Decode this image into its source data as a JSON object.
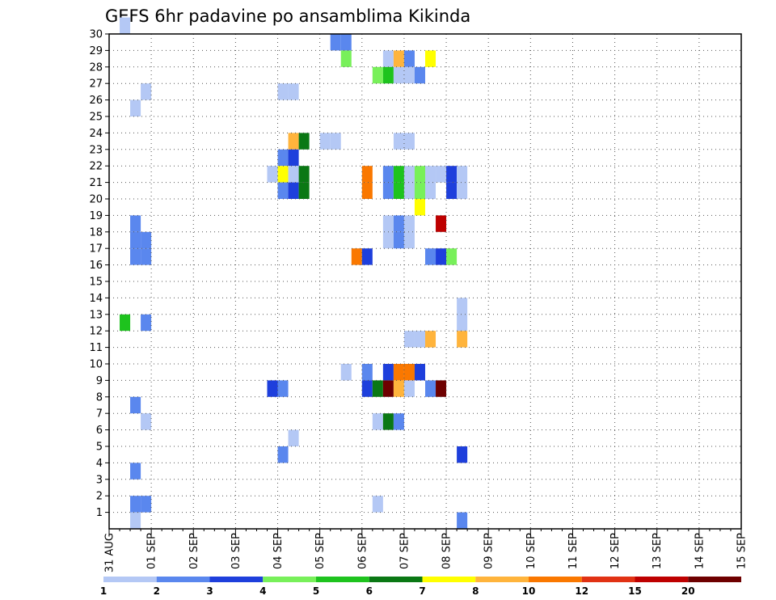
{
  "chart_data": {
    "type": "heatmap",
    "title": "GEFS 6hr padavine po ansamblima Kikinda",
    "xlabel": "",
    "ylabel": "",
    "x_range": [
      "31 AUG 00Z",
      "15 SEP 00Z"
    ],
    "x_tick_labels": [
      "31 AUG",
      "01 SEP",
      "02 SEP",
      "03 SEP",
      "04 SEP",
      "05 SEP",
      "06 SEP",
      "07 SEP",
      "08 SEP",
      "09 SEP",
      "10 SEP",
      "11 SEP",
      "12 SEP",
      "13 SEP",
      "14 SEP",
      "15 SEP"
    ],
    "x_step_hours": 6,
    "y_tick_labels": [
      "1",
      "2",
      "3",
      "4",
      "5",
      "6",
      "7",
      "8",
      "9",
      "10",
      "11",
      "12",
      "13",
      "14",
      "15",
      "16",
      "17",
      "18",
      "19",
      "20",
      "21",
      "22",
      "23",
      "24",
      "25",
      "26",
      "27",
      "28",
      "29",
      "30"
    ],
    "y_range": [
      0,
      30
    ],
    "grid": true,
    "colorbar": {
      "labels": [
        "1",
        "2",
        "3",
        "4",
        "5",
        "6",
        "7",
        "8",
        "10",
        "12",
        "15",
        "20"
      ],
      "colors": [
        "#b4c8f5",
        "#5a87ee",
        "#1e3fdc",
        "#78f05a",
        "#1ec31e",
        "#0a7814",
        "#ffff00",
        "#ffb43c",
        "#fa7800",
        "#e13214",
        "#be0000",
        "#6e0000"
      ]
    },
    "series_note": "cells: [member, 6h-step index from 31 AUG 00Z, class index into colorbar.colors]",
    "cells": [
      [
        30,
        1,
        0
      ],
      [
        29,
        21,
        1
      ],
      [
        29,
        22,
        1
      ],
      [
        28,
        22,
        3
      ],
      [
        28,
        26,
        0
      ],
      [
        28,
        27,
        7
      ],
      [
        28,
        28,
        1
      ],
      [
        28,
        30,
        6
      ],
      [
        27,
        25,
        3
      ],
      [
        27,
        26,
        4
      ],
      [
        27,
        27,
        0
      ],
      [
        27,
        28,
        0
      ],
      [
        27,
        29,
        1
      ],
      [
        26,
        3,
        0
      ],
      [
        26,
        16,
        0
      ],
      [
        26,
        17,
        0
      ],
      [
        25,
        2,
        0
      ],
      [
        23,
        17,
        7
      ],
      [
        23,
        18,
        5
      ],
      [
        23,
        20,
        0
      ],
      [
        23,
        21,
        0
      ],
      [
        23,
        27,
        0
      ],
      [
        23,
        28,
        0
      ],
      [
        22,
        16,
        1
      ],
      [
        22,
        17,
        2
      ],
      [
        21,
        15,
        0
      ],
      [
        21,
        16,
        6
      ],
      [
        21,
        17,
        0
      ],
      [
        21,
        18,
        5
      ],
      [
        21,
        24,
        8
      ],
      [
        21,
        26,
        1
      ],
      [
        21,
        27,
        4
      ],
      [
        21,
        28,
        0
      ],
      [
        21,
        29,
        3
      ],
      [
        21,
        30,
        0
      ],
      [
        21,
        31,
        0
      ],
      [
        21,
        32,
        2
      ],
      [
        21,
        33,
        0
      ],
      [
        20,
        16,
        1
      ],
      [
        20,
        17,
        2
      ],
      [
        20,
        18,
        5
      ],
      [
        20,
        24,
        8
      ],
      [
        20,
        26,
        1
      ],
      [
        20,
        27,
        4
      ],
      [
        20,
        28,
        0
      ],
      [
        20,
        29,
        3
      ],
      [
        20,
        30,
        0
      ],
      [
        20,
        32,
        2
      ],
      [
        20,
        33,
        0
      ],
      [
        19,
        29,
        6
      ],
      [
        18,
        2,
        1
      ],
      [
        18,
        26,
        0
      ],
      [
        18,
        27,
        1
      ],
      [
        18,
        28,
        0
      ],
      [
        18,
        31,
        10
      ],
      [
        17,
        2,
        1
      ],
      [
        17,
        3,
        1
      ],
      [
        17,
        26,
        0
      ],
      [
        17,
        27,
        1
      ],
      [
        17,
        28,
        0
      ],
      [
        16,
        2,
        1
      ],
      [
        16,
        3,
        1
      ],
      [
        16,
        23,
        8
      ],
      [
        16,
        24,
        2
      ],
      [
        16,
        30,
        1
      ],
      [
        16,
        31,
        2
      ],
      [
        16,
        32,
        3
      ],
      [
        13,
        33,
        0
      ],
      [
        12,
        1,
        4
      ],
      [
        12,
        3,
        1
      ],
      [
        12,
        33,
        0
      ],
      [
        11,
        28,
        0
      ],
      [
        11,
        29,
        0
      ],
      [
        11,
        30,
        7
      ],
      [
        11,
        33,
        7
      ],
      [
        9,
        22,
        0
      ],
      [
        9,
        24,
        1
      ],
      [
        9,
        26,
        2
      ],
      [
        9,
        27,
        8
      ],
      [
        9,
        28,
        8
      ],
      [
        9,
        29,
        2
      ],
      [
        8,
        15,
        2
      ],
      [
        8,
        16,
        1
      ],
      [
        8,
        24,
        2
      ],
      [
        8,
        25,
        5
      ],
      [
        8,
        26,
        11
      ],
      [
        8,
        27,
        7
      ],
      [
        8,
        28,
        0
      ],
      [
        8,
        30,
        1
      ],
      [
        8,
        31,
        11
      ],
      [
        7,
        2,
        1
      ],
      [
        6,
        3,
        0
      ],
      [
        6,
        25,
        0
      ],
      [
        6,
        26,
        5
      ],
      [
        6,
        27,
        1
      ],
      [
        5,
        17,
        0
      ],
      [
        4,
        16,
        1
      ],
      [
        4,
        33,
        2
      ],
      [
        3,
        2,
        1
      ],
      [
        1,
        2,
        1
      ],
      [
        1,
        3,
        1
      ],
      [
        1,
        25,
        0
      ],
      [
        0,
        2,
        0
      ],
      [
        0,
        33,
        1
      ]
    ]
  }
}
